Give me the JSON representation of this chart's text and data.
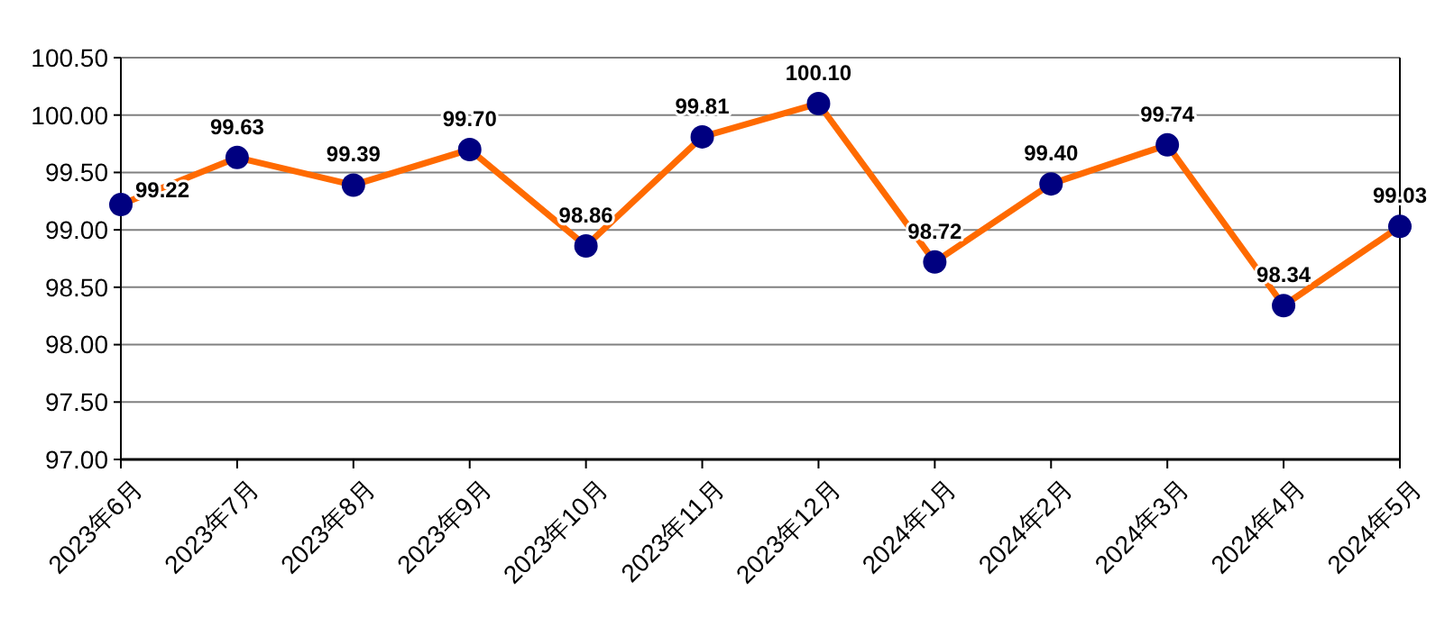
{
  "chart_data": {
    "type": "line",
    "categories": [
      "2023年6月",
      "2023年7月",
      "2023年8月",
      "2023年9月",
      "2023年10月",
      "2023年11月",
      "2023年12月",
      "2024年1月",
      "2024年2月",
      "2024年3月",
      "2024年4月",
      "2024年5月"
    ],
    "series": [
      {
        "color": "#ff6a00",
        "values": [
          99.22,
          99.63,
          99.39,
          99.7,
          98.86,
          99.81,
          100.1,
          98.72,
          99.4,
          99.74,
          98.34,
          99.03
        ],
        "value_labels": [
          "99.22",
          "99.63",
          "99.39",
          "99.70",
          "98.86",
          "99.81",
          "100.10",
          "98.72",
          "99.40",
          "99.74",
          "98.34",
          "99.03"
        ]
      }
    ],
    "ylim": [
      97,
      100.5
    ],
    "yticks": [
      {
        "value": 97,
        "label": "97.00"
      },
      {
        "value": 97.5,
        "label": "97.50"
      },
      {
        "value": 98,
        "label": "98.00"
      },
      {
        "value": 98.5,
        "label": "98.50"
      },
      {
        "value": 99,
        "label": "99.00"
      },
      {
        "value": 99.5,
        "label": "99.50"
      },
      {
        "value": 100,
        "label": "100.00"
      },
      {
        "value": 100.5,
        "label": "100.50"
      }
    ],
    "grid": "y",
    "marker": "circle",
    "line_style": "solid"
  }
}
